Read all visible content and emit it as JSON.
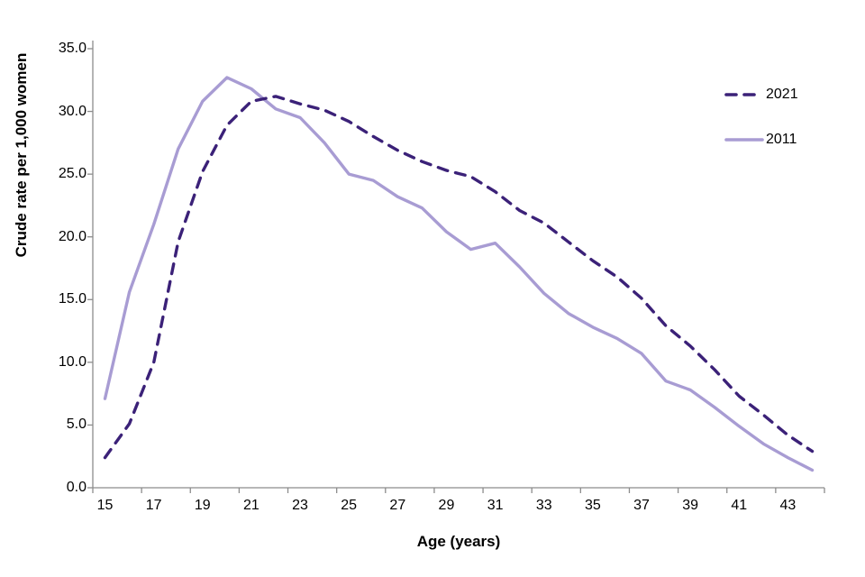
{
  "chart_data": {
    "type": "line",
    "title": "",
    "xlabel": "Age (years)",
    "ylabel": "Crude rate per 1,000 women",
    "x": [
      15,
      16,
      17,
      18,
      19,
      20,
      21,
      22,
      23,
      24,
      25,
      26,
      27,
      28,
      29,
      30,
      31,
      32,
      33,
      34,
      35,
      36,
      37,
      38,
      39,
      40,
      41,
      42,
      43,
      44
    ],
    "series": [
      {
        "name": "2011",
        "style": "solid",
        "color": "#A89CD3",
        "values": [
          7.1,
          15.6,
          21.0,
          27.0,
          30.8,
          32.7,
          31.8,
          30.2,
          29.5,
          27.5,
          25.0,
          24.5,
          23.2,
          22.3,
          20.4,
          19.0,
          19.5,
          17.6,
          15.5,
          13.9,
          12.8,
          11.9,
          10.7,
          8.5,
          7.8,
          6.4,
          4.9,
          3.5,
          2.4,
          1.4
        ]
      },
      {
        "name": "2021",
        "style": "dashed",
        "color": "#3B2178",
        "values": [
          2.4,
          5.1,
          10.0,
          19.6,
          25.2,
          28.9,
          30.8,
          31.2,
          30.6,
          30.1,
          29.2,
          28.0,
          26.9,
          26.0,
          25.3,
          24.8,
          23.6,
          22.1,
          21.1,
          19.6,
          18.1,
          16.8,
          15.1,
          12.9,
          11.3,
          9.4,
          7.3,
          5.8,
          4.2,
          2.9
        ]
      }
    ],
    "ylim": [
      0,
      35
    ],
    "yticks": [
      0,
      5,
      10,
      15,
      20,
      25,
      30,
      35
    ],
    "ytick_labels": [
      "0.0",
      "5.0",
      "10.0",
      "15.0",
      "20.0",
      "25.0",
      "30.0",
      "35.0"
    ],
    "xticks": [
      15,
      17,
      19,
      21,
      23,
      25,
      27,
      29,
      31,
      33,
      35,
      37,
      39,
      41,
      43
    ],
    "grid": false,
    "legend_position": "upper right",
    "axis_color": "#8C8C8C"
  },
  "legend": {
    "item_2021_label": "2021",
    "item_2011_label": "2011"
  },
  "axes": {
    "x_title": "Age (years)",
    "y_title": "Crude rate per 1,000 women"
  }
}
